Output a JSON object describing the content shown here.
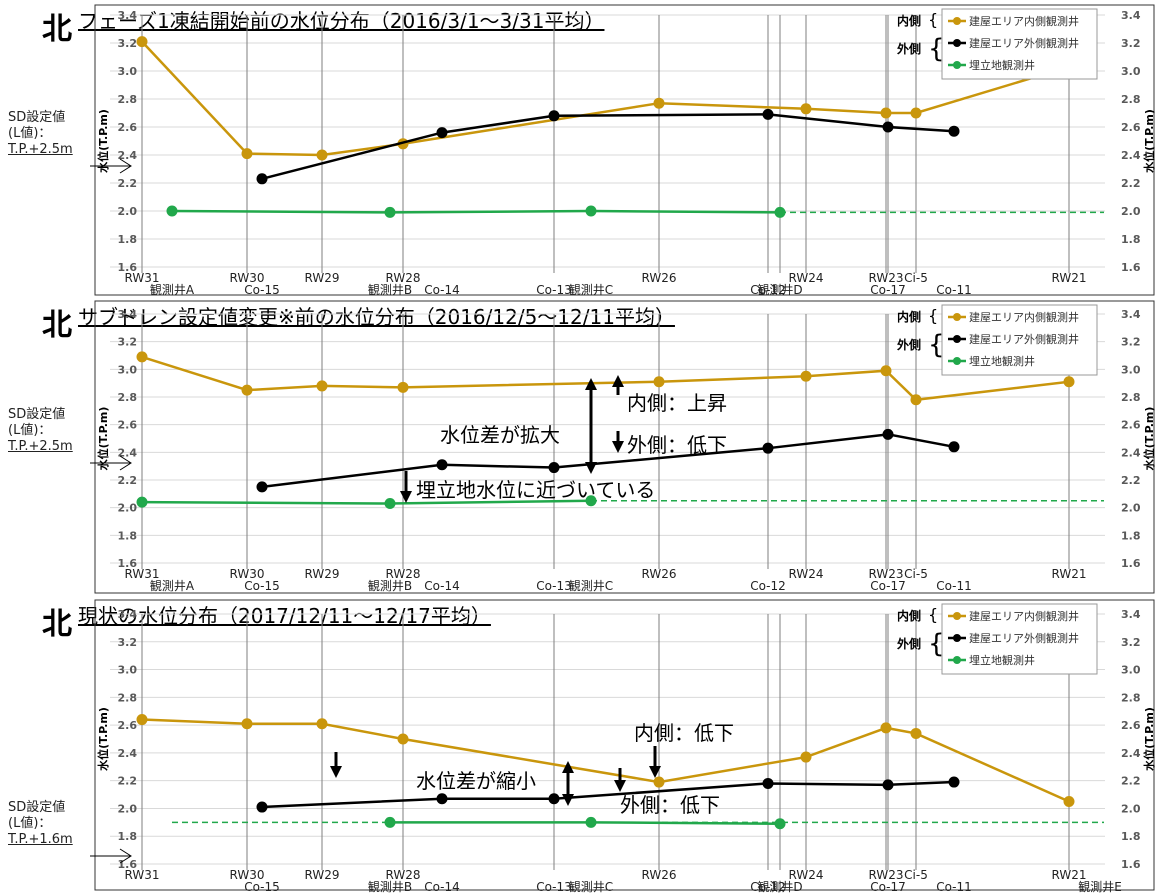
{
  "north_label": "北",
  "x_names": [
    "RW31",
    "観測井A",
    "RW30",
    "Co-15",
    "RW29",
    "観測井B",
    "RW28",
    "Co-14",
    "Co-13",
    "観測井C",
    "RW26",
    "Co-12",
    "観測井D",
    "RW24",
    "RW23",
    "Co-17",
    "Ci-5",
    "Co-11",
    "RW21",
    "観測井E"
  ],
  "colors": {
    "inner": "#C9960C",
    "outer": "#000000",
    "landfill": "#21A84B",
    "grid": "#D9D9D9",
    "vline": "#7F7F7F"
  },
  "chart_data": [
    {
      "type": "line",
      "title": "フェーズ1凍結開始前の水位分布（2016/3/1～3/31平均）",
      "ylabel": "水位(T.P.m)",
      "ylim": [
        1.6,
        3.4
      ],
      "y_ticks": [
        1.6,
        1.8,
        2.0,
        2.2,
        2.4,
        2.6,
        2.8,
        3.0,
        3.2,
        3.4
      ],
      "x_ticks_top": [
        "RW31",
        "RW30",
        "RW29",
        "RW28",
        "RW26",
        "RW24",
        "RW23",
        "Ci-5",
        "RW21"
      ],
      "x_ticks_bottom": [
        "観測井A",
        "Co-15",
        "観測井B",
        "Co-14",
        "Co-13",
        "観測井C",
        "Co-12",
        "観測井D",
        "Co-17",
        "Co-11"
      ],
      "sd_label": [
        "SD設定値",
        "(L値)：",
        "T.P.+2.5m"
      ],
      "series": [
        {
          "name": "建屋エリア内側観測井",
          "color_key": "inner",
          "x": [
            "RW31",
            "RW30",
            "RW29",
            "RW28",
            "RW26",
            "RW24",
            "RW23",
            "Ci-5",
            "RW21"
          ],
          "values": [
            3.21,
            2.41,
            2.4,
            2.48,
            2.77,
            2.73,
            2.7,
            2.7,
            3.03
          ]
        },
        {
          "name": "建屋エリア外側観測井",
          "color_key": "outer",
          "x": [
            "Co-15",
            "Co-14",
            "Co-13",
            "Co-12",
            "Co-17",
            "Co-11"
          ],
          "values": [
            2.23,
            2.56,
            2.68,
            2.69,
            2.6,
            2.57
          ]
        },
        {
          "name": "埋立地観測井",
          "color_key": "landfill",
          "x": [
            "観測井A",
            "観測井B",
            "観測井C",
            "観測井D"
          ],
          "values": [
            2.0,
            1.99,
            2.0,
            1.99
          ],
          "dashed_to": "RW21"
        }
      ],
      "legend_groups": [
        {
          "label": "内側"
        },
        {
          "label": "外側"
        }
      ],
      "annotations": []
    },
    {
      "type": "line",
      "title": "サブドレン設定値変更※前の水位分布（2016/12/5～12/11平均）",
      "ylabel": "水位(T.P.m)",
      "ylim": [
        1.6,
        3.4
      ],
      "y_ticks": [
        1.6,
        1.8,
        2.0,
        2.2,
        2.4,
        2.6,
        2.8,
        3.0,
        3.2,
        3.4
      ],
      "x_ticks_top": [
        "RW31",
        "RW30",
        "RW29",
        "RW28",
        "RW26",
        "RW24",
        "RW23",
        "Ci-5",
        "RW21"
      ],
      "x_ticks_bottom": [
        "観測井A",
        "Co-15",
        "観測井B",
        "Co-14",
        "Co-13",
        "観測井C",
        "Co-12",
        "Co-17",
        "Co-11"
      ],
      "sd_label": [
        "SD設定値",
        "(L値)：",
        "T.P.+2.5m"
      ],
      "series": [
        {
          "name": "建屋エリア内側観測井",
          "color_key": "inner",
          "x": [
            "RW31",
            "RW30",
            "RW29",
            "RW28",
            "RW26",
            "RW24",
            "RW23",
            "Ci-5",
            "RW21"
          ],
          "values": [
            3.09,
            2.85,
            2.88,
            2.87,
            2.91,
            2.95,
            2.99,
            2.78,
            2.91
          ]
        },
        {
          "name": "建屋エリア外側観測井",
          "color_key": "outer",
          "x": [
            "Co-15",
            "Co-14",
            "Co-13",
            "Co-12",
            "Co-17",
            "Co-11"
          ],
          "values": [
            2.15,
            2.31,
            2.29,
            2.43,
            2.53,
            2.44
          ]
        },
        {
          "name": "埋立地観測井",
          "color_key": "landfill",
          "x": [
            "RW31",
            "観測井B",
            "観測井C"
          ],
          "values": [
            2.04,
            2.03,
            2.05
          ],
          "dashed_to": "RW21"
        }
      ],
      "legend_groups": [
        {
          "label": "内側"
        },
        {
          "label": "外側"
        }
      ],
      "annotations": [
        {
          "text": "水位差が拡大"
        },
        {
          "text": "内側：上昇"
        },
        {
          "text": "外側：低下"
        },
        {
          "text": "埋立地水位に近づいている"
        }
      ]
    },
    {
      "type": "line",
      "title": "現状の水位分布（2017/12/11～12/17平均）",
      "ylabel": "水位(T.P.m)",
      "ylim": [
        1.6,
        3.4
      ],
      "y_ticks": [
        1.6,
        1.8,
        2.0,
        2.2,
        2.4,
        2.6,
        2.8,
        3.0,
        3.2,
        3.4
      ],
      "x_ticks_top": [
        "RW31",
        "RW30",
        "RW29",
        "RW28",
        "RW26",
        "RW24",
        "RW23",
        "Ci-5",
        "RW21"
      ],
      "x_ticks_bottom": [
        "Co-15",
        "観測井B",
        "Co-14",
        "Co-13",
        "観測井C",
        "Co-12",
        "観測井D",
        "Co-17",
        "Co-11",
        "観測井E"
      ],
      "sd_label": [
        "SD設定値",
        "(L値)：",
        "T.P.+1.6m"
      ],
      "series": [
        {
          "name": "建屋エリア内側観測井",
          "color_key": "inner",
          "x": [
            "RW31",
            "RW30",
            "RW29",
            "RW28",
            "RW26",
            "RW24",
            "RW23",
            "Ci-5",
            "RW21"
          ],
          "values": [
            2.64,
            2.61,
            2.61,
            2.5,
            2.19,
            2.37,
            2.58,
            2.54,
            2.05
          ]
        },
        {
          "name": "建屋エリア外側観測井",
          "color_key": "outer",
          "x": [
            "Co-15",
            "Co-14",
            "Co-13",
            "Co-12",
            "Co-17",
            "Co-11"
          ],
          "values": [
            2.01,
            2.07,
            2.07,
            2.18,
            2.17,
            2.19
          ]
        },
        {
          "name": "埋立地観測井",
          "color_key": "landfill",
          "x": [
            "観測井B",
            "観測井C",
            "観測井D"
          ],
          "values": [
            1.9,
            1.9,
            1.89
          ],
          "dashed_from": "観測井A",
          "dashed_to": "RW21"
        }
      ],
      "legend_groups": [
        {
          "label": "内側"
        },
        {
          "label": "外側"
        }
      ],
      "annotations": [
        {
          "text": "水位差が縮小"
        },
        {
          "text": "内側：低下"
        },
        {
          "text": "外側：低下"
        }
      ]
    }
  ]
}
